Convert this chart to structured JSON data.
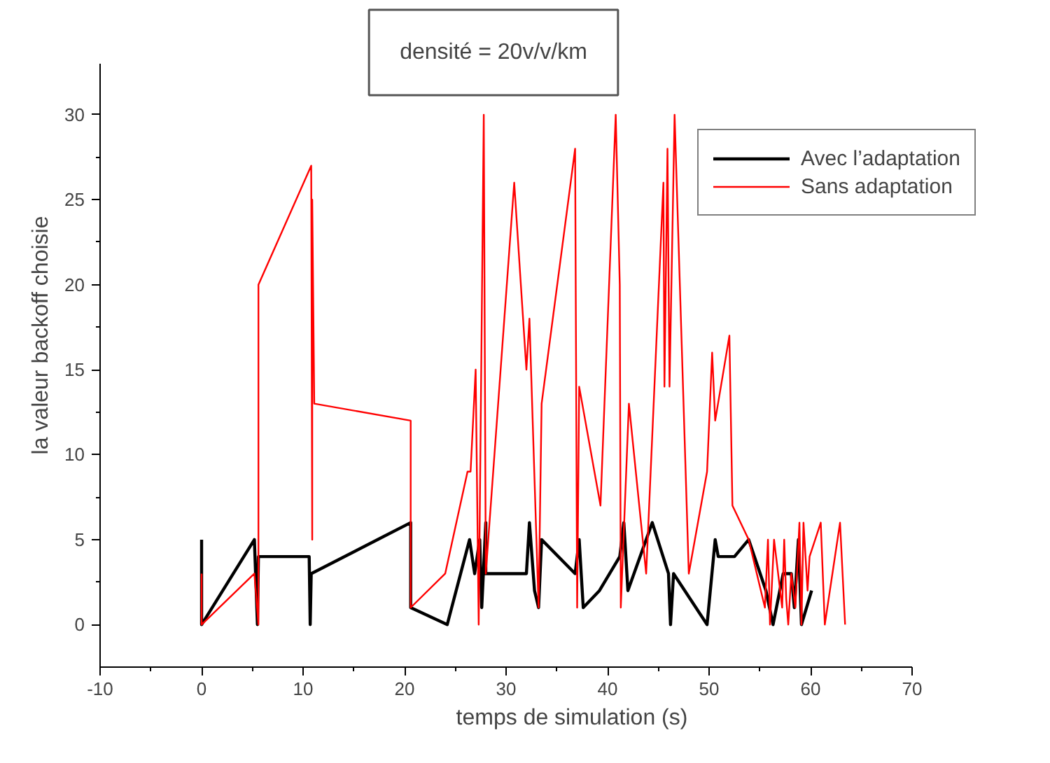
{
  "chart_data": {
    "type": "line",
    "title": "densité = 20v/v/km",
    "xlabel": "temps de simulation (s)",
    "ylabel": "la valeur backoff choisie",
    "xlim": [
      -10,
      70
    ],
    "xticks": [
      -10,
      0,
      10,
      20,
      30,
      40,
      50,
      60,
      70
    ],
    "ylim": [
      -2.5,
      33
    ],
    "yticks": [
      0,
      5,
      10,
      15,
      20,
      25,
      30
    ],
    "grid": false,
    "legend": "top right",
    "series": [
      {
        "name": "Avec l’adaptation",
        "color": "#000000",
        "x": [
          0,
          0,
          5.2,
          5.5,
          5.6,
          10.6,
          10.7,
          10.8,
          20.6,
          20.6,
          24.2,
          26.4,
          26.9,
          27.4,
          27.6,
          28,
          28,
          32,
          32.3,
          32.8,
          33.2,
          33.5,
          36.8,
          37.2,
          37.6,
          39.2,
          41.2,
          41.6,
          42,
          44.4,
          46,
          46.2,
          46.5,
          47.6,
          49.8,
          50.6,
          50.9,
          52.5,
          53.9,
          55.6,
          56.3,
          57.3,
          58.1,
          58.4,
          58.8,
          59.1,
          60.1
        ],
        "values": [
          5,
          0,
          5,
          0,
          4,
          4,
          0,
          3,
          6,
          1,
          0,
          5,
          3,
          5,
          1,
          6,
          3,
          3,
          6,
          2,
          1,
          5,
          3,
          5,
          1,
          2,
          4,
          6,
          2,
          6,
          3,
          0,
          3,
          2,
          0,
          5,
          4,
          4,
          5,
          2,
          0,
          3,
          3,
          1,
          5,
          0,
          2
        ]
      },
      {
        "name": "Sans adaptation",
        "color": "#ff0000",
        "x": [
          0,
          0,
          5.2,
          5.6,
          5.6,
          10.8,
          10.9,
          10.9,
          11.1,
          20.6,
          20.6,
          24,
          26.2,
          26.5,
          27,
          27.3,
          27.8,
          28,
          30.8,
          32,
          32.3,
          33.2,
          33.5,
          36.8,
          37,
          37.2,
          39.3,
          40.8,
          41.2,
          41.3,
          42.1,
          43.8,
          45.5,
          45.6,
          45.9,
          46.1,
          46.6,
          48,
          49.8,
          50.3,
          50.6,
          52,
          52.3,
          53.9,
          55.5,
          55.8,
          56,
          56.4,
          56.6,
          57.2,
          57.4,
          57.6,
          57.8,
          58.1,
          58.5,
          58.9,
          59.1,
          59.3,
          59.7,
          59.9,
          61,
          61.4,
          62.9,
          63.4
        ],
        "values": [
          3,
          0,
          3,
          0,
          20,
          27,
          5,
          25,
          13,
          12,
          1,
          3,
          9,
          9,
          15,
          0,
          30,
          3,
          26,
          15,
          18,
          1,
          13,
          28,
          1,
          14,
          7,
          30,
          20,
          1,
          13,
          3,
          26,
          14,
          28,
          14,
          30,
          3,
          9,
          16,
          12,
          17,
          7,
          5,
          1,
          5,
          0,
          5,
          4,
          1,
          5,
          1.5,
          0,
          3,
          1,
          6,
          0,
          6,
          2,
          4,
          6,
          0,
          6,
          0
        ]
      }
    ]
  }
}
